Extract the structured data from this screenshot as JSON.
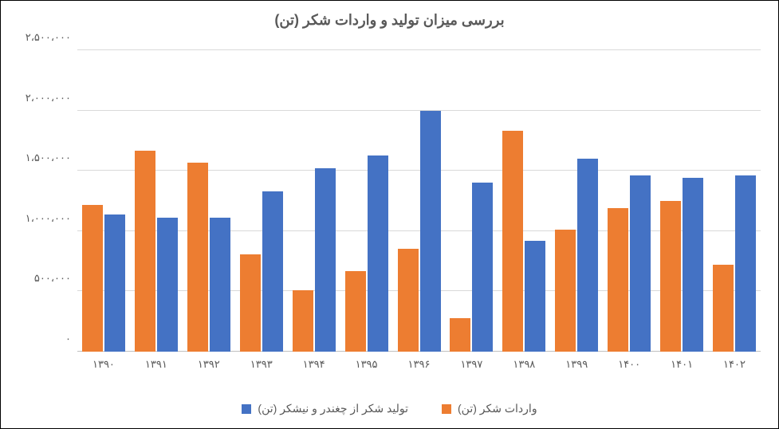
{
  "chart": {
    "type": "bar",
    "title": "بررسی میزان تولید و واردات شکر (تن)",
    "title_fontsize": 18,
    "title_color": "#595959",
    "background_color": "#ffffff",
    "border_color": "#000000",
    "grid_color": "#d9d9d9",
    "axis_text_color": "#595959",
    "label_fontsize": 13,
    "ylim": [
      0,
      2500000
    ],
    "ytick_step": 500000,
    "yticks": [
      {
        "value": 0,
        "label": "۰"
      },
      {
        "value": 500000,
        "label": "۵۰۰،۰۰۰"
      },
      {
        "value": 1000000,
        "label": "۱،۰۰۰،۰۰۰"
      },
      {
        "value": 1500000,
        "label": "۱،۵۰۰،۰۰۰"
      },
      {
        "value": 2000000,
        "label": "۲،۰۰۰،۰۰۰"
      },
      {
        "value": 2500000,
        "label": "۲،۵۰۰،۰۰۰"
      }
    ],
    "categories": [
      "۱۳۹۰",
      "۱۳۹۱",
      "۱۳۹۲",
      "۱۳۹۳",
      "۱۳۹۴",
      "۱۳۹۵",
      "۱۳۹۶",
      "۱۳۹۷",
      "۱۳۹۸",
      "۱۳۹۹",
      "۱۴۰۰",
      "۱۴۰۱",
      "۱۴۰۲"
    ],
    "series": [
      {
        "name": "تولید شکر از چغندر و نیشکر (تن)",
        "color": "#4472c4",
        "values": [
          1140000,
          1110000,
          1110000,
          1330000,
          1520000,
          1630000,
          2000000,
          1400000,
          920000,
          1600000,
          1460000,
          1440000,
          1460000
        ]
      },
      {
        "name": "واردات شکر (تن)",
        "color": "#ed7d31",
        "values": [
          1220000,
          1670000,
          1570000,
          810000,
          510000,
          670000,
          850000,
          280000,
          1830000,
          1010000,
          1190000,
          1250000,
          720000
        ]
      }
    ],
    "legend_position": "bottom"
  }
}
